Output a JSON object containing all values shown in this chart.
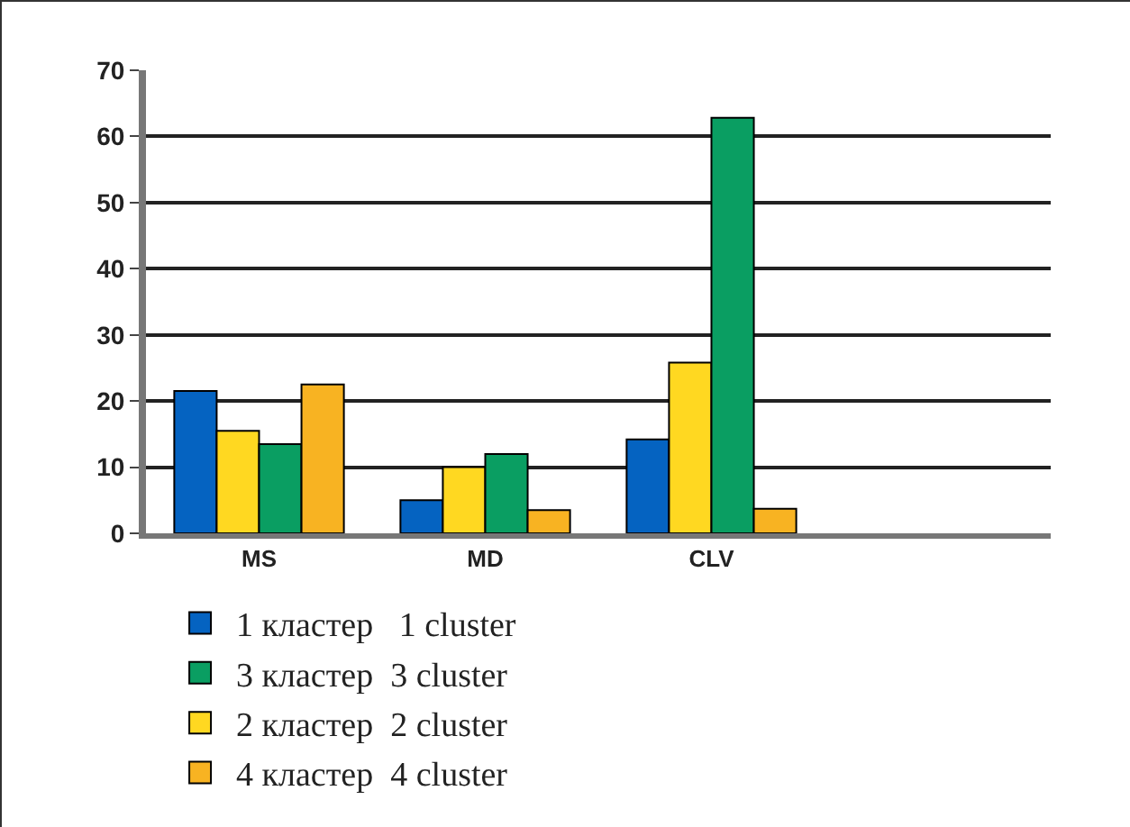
{
  "chart_data": {
    "type": "bar",
    "categories": [
      "MS",
      "MD",
      "CLV",
      null
    ],
    "series": [
      {
        "name": "1 кластер   1 cluster",
        "color": "#0563c1",
        "values": [
          21.5,
          5,
          14.2,
          null
        ]
      },
      {
        "name": "2 кластер  2 cluster",
        "color": "#ffd821",
        "values": [
          15.5,
          10,
          25.8,
          null
        ]
      },
      {
        "name": "3 кластер  3 cluster",
        "color": "#0a9e62",
        "values": [
          13.5,
          12,
          62.8,
          null
        ]
      },
      {
        "name": "4 кластер  4 cluster",
        "color": "#f8b322",
        "values": [
          22.5,
          3.5,
          3.7,
          null
        ]
      }
    ],
    "ylim": [
      0,
      70
    ],
    "yticks": [
      0,
      10,
      20,
      30,
      40,
      50,
      60,
      70
    ],
    "grid": "y",
    "legend": "bottom"
  }
}
